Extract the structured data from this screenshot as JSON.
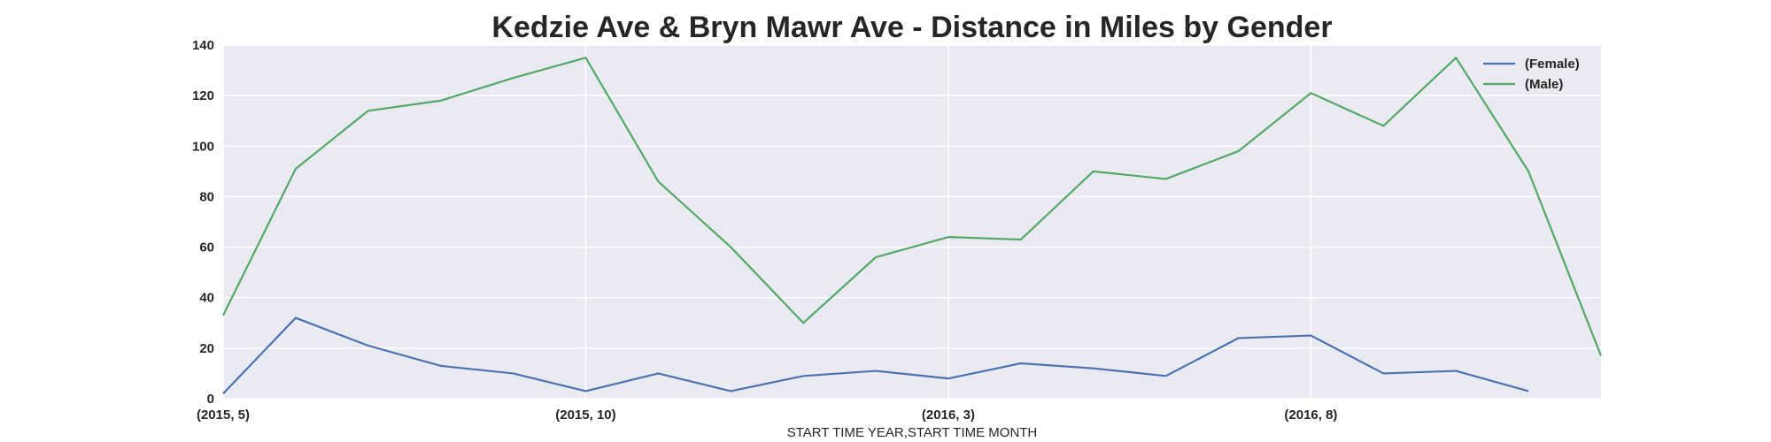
{
  "chart_data": {
    "type": "line",
    "title": "Kedzie Ave & Bryn Mawr Ave - Distance in Miles by Gender",
    "xlabel": "START TIME YEAR,START TIME MONTH",
    "ylabel": "",
    "x": [
      "(2015, 5)",
      "(2015, 6)",
      "(2015, 7)",
      "(2015, 8)",
      "(2015, 9)",
      "(2015, 10)",
      "(2015, 11)",
      "(2015, 12)",
      "(2016, 1)",
      "(2016, 2)",
      "(2016, 3)",
      "(2016, 4)",
      "(2016, 5)",
      "(2016, 6)",
      "(2016, 7)",
      "(2016, 8)",
      "(2016, 9)",
      "(2016, 10)",
      "(2016, 11)",
      "(2016, 12)"
    ],
    "xticks": [
      "(2015, 5)",
      "(2015, 10)",
      "(2016, 3)",
      "(2016, 8)"
    ],
    "ylim": [
      0,
      140
    ],
    "yticks": [
      0,
      20,
      40,
      60,
      80,
      100,
      120,
      140
    ],
    "grid": true,
    "legend_position": "top-right",
    "series": [
      {
        "name": "(Female)",
        "color": "#4c72b0",
        "values": [
          2,
          32,
          21,
          13,
          10,
          3,
          10,
          3,
          9,
          11,
          8,
          14,
          12,
          9,
          24,
          25,
          10,
          11,
          3,
          null
        ]
      },
      {
        "name": "(Male)",
        "color": "#55a868",
        "values": [
          33,
          91,
          114,
          118,
          127,
          135,
          86,
          60,
          30,
          56,
          64,
          63,
          90,
          87,
          98,
          121,
          108,
          135,
          90,
          17
        ]
      }
    ]
  }
}
